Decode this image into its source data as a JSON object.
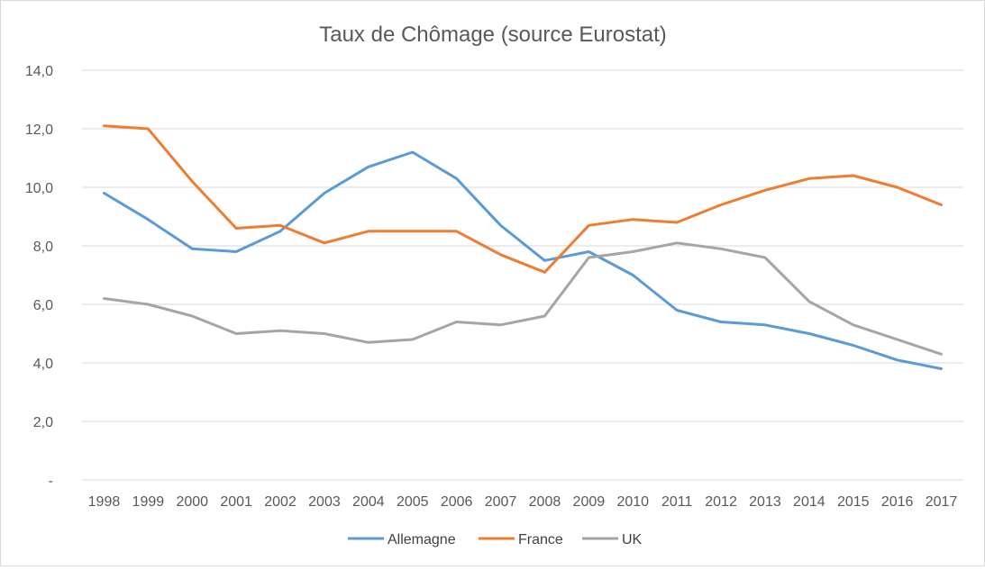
{
  "chart_data": {
    "type": "line",
    "title": "Taux de Chômage (source Eurostat)",
    "xlabel": "",
    "ylabel": "",
    "categories": [
      "1998",
      "1999",
      "2000",
      "2001",
      "2002",
      "2003",
      "2004",
      "2005",
      "2006",
      "2007",
      "2008",
      "2009",
      "2010",
      "2011",
      "2012",
      "2013",
      "2014",
      "2015",
      "2016",
      "2017"
    ],
    "y_tick_labels": [
      "-",
      "2,0",
      "4,0",
      "6,0",
      "8,0",
      "10,0",
      "12,0",
      "14,0"
    ],
    "ylim": [
      0,
      14
    ],
    "y_step": 2,
    "grid": true,
    "legend_position": "bottom",
    "series": [
      {
        "name": "Allemagne",
        "color": "#5b9bd5",
        "values": [
          9.8,
          8.9,
          7.9,
          7.8,
          8.5,
          9.8,
          10.7,
          11.2,
          10.3,
          8.7,
          7.5,
          7.8,
          7.0,
          5.8,
          5.4,
          5.3,
          5.0,
          4.6,
          4.1,
          3.8
        ]
      },
      {
        "name": "France",
        "color": "#ed7d31",
        "values": [
          12.1,
          12.0,
          10.2,
          8.6,
          8.7,
          8.1,
          8.5,
          8.5,
          8.5,
          7.7,
          7.1,
          8.7,
          8.9,
          8.8,
          9.4,
          9.9,
          10.3,
          10.4,
          10.0,
          9.4
        ]
      },
      {
        "name": "UK",
        "color": "#a5a5a5",
        "values": [
          6.2,
          6.0,
          5.6,
          5.0,
          5.1,
          5.0,
          4.7,
          4.8,
          5.4,
          5.3,
          5.6,
          7.6,
          7.8,
          8.1,
          7.9,
          7.6,
          6.1,
          5.3,
          4.8,
          4.3
        ]
      }
    ]
  }
}
